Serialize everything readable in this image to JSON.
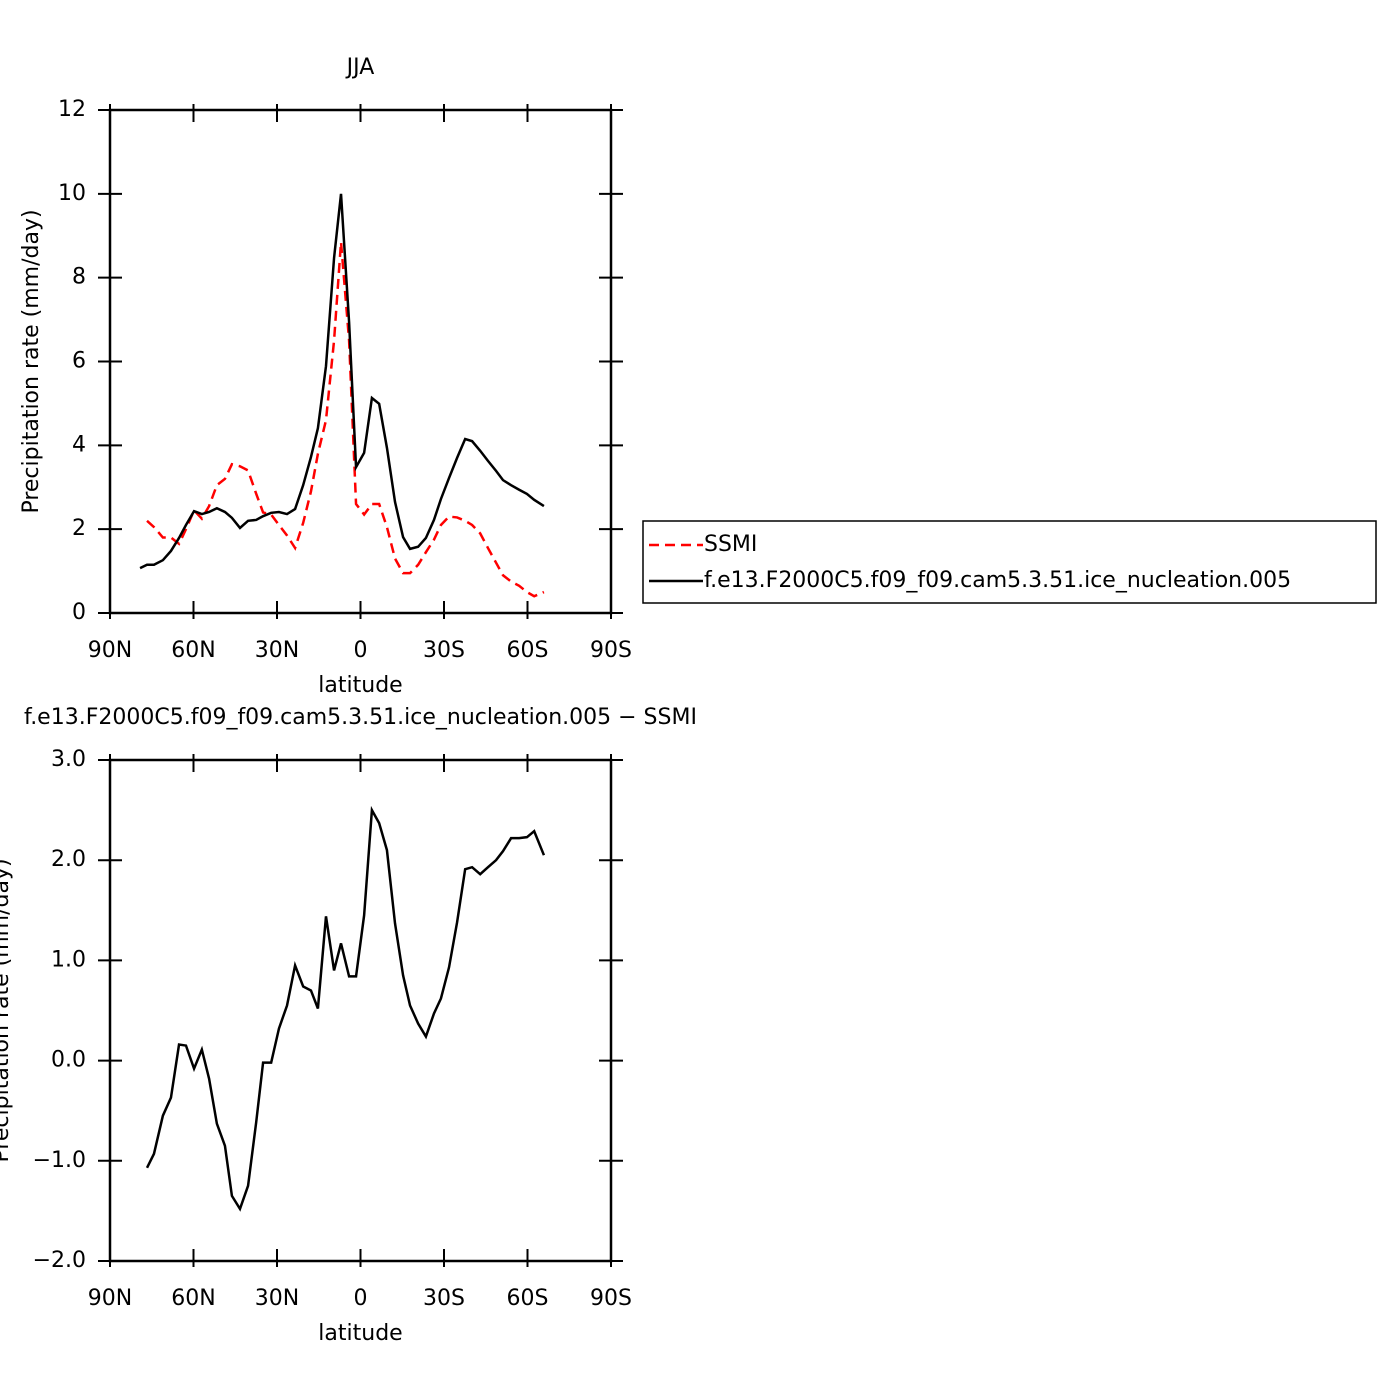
{
  "chart_data": [
    {
      "type": "line",
      "title": "JJA",
      "xlabel": "latitude",
      "ylabel": "Precipitation rate (mm/day)",
      "xlim": [
        90,
        -90
      ],
      "xticks": [
        {
          "value": 90,
          "label": "90N"
        },
        {
          "value": 60,
          "label": "60N"
        },
        {
          "value": 30,
          "label": "30N"
        },
        0,
        {
          "value": -30,
          "label": "30S"
        },
        {
          "value": -60,
          "label": "60S"
        },
        {
          "value": -90,
          "label": "90S"
        }
      ],
      "ylim": [
        0,
        12
      ],
      "yticks": [
        0,
        2,
        4,
        6,
        8,
        10,
        12
      ],
      "legend": "outside-right",
      "x": [
        79.2,
        76.7,
        74.2,
        71,
        68.1,
        65.2,
        62.7,
        59.8,
        57,
        54.4,
        51.6,
        48.7,
        46.2,
        43.3,
        40.4,
        37.5,
        35,
        32.1,
        29.3,
        26.4,
        23.5,
        20.6,
        17.8,
        15.3,
        12.4,
        9.5,
        7.0,
        4.1,
        1.6,
        -1.3,
        -4.1,
        -6.7,
        -9.5,
        -12.4,
        -15.3,
        -17.8,
        -20.7,
        -23.5,
        -26.4,
        -28.9,
        -31.8,
        -34.7,
        -37.6,
        -40.1,
        -43.0,
        -45.8,
        -48.7,
        -51.2,
        -54.1,
        -57.0,
        -59.8,
        -62.4,
        -65.9
      ],
      "series": [
        {
          "name": "SSMI",
          "color": "#ff0000",
          "dash": true,
          "values": [
            null,
            2.2,
            2.05,
            1.8,
            1.8,
            1.65,
            2.0,
            2.45,
            2.25,
            2.55,
            3.05,
            3.2,
            3.55,
            3.5,
            3.4,
            2.85,
            2.4,
            2.35,
            2.1,
            1.85,
            1.55,
            2.15,
            2.9,
            3.8,
            4.6,
            6.5,
            8.85,
            6.5,
            2.6,
            2.35,
            2.6,
            2.6,
            2.05,
            1.3,
            0.95,
            0.95,
            1.15,
            1.45,
            1.75,
            2.1,
            2.3,
            2.28,
            2.2,
            2.1,
            1.9,
            1.55,
            1.2,
            0.9,
            0.75,
            0.65,
            0.5,
            0.4,
            0.5
          ]
        },
        {
          "name": "f.e13.F2000C5.f09_f09.cam5.3.51.ice_nucleation.005",
          "color": "#000000",
          "dash": false,
          "values": [
            1.07,
            1.15,
            1.15,
            1.26,
            1.48,
            1.79,
            2.1,
            2.43,
            2.36,
            2.41,
            2.5,
            2.41,
            2.27,
            2.03,
            2.2,
            2.22,
            2.31,
            2.39,
            2.41,
            2.36,
            2.48,
            3.05,
            3.72,
            4.41,
            5.89,
            8.47,
            10.0,
            6.94,
            3.48,
            3.82,
            5.13,
            4.99,
            3.94,
            2.65,
            1.81,
            1.53,
            1.58,
            1.79,
            2.22,
            2.72,
            3.22,
            3.7,
            4.15,
            4.1,
            3.87,
            3.63,
            3.39,
            3.17,
            3.05,
            2.94,
            2.84,
            2.7,
            2.55
          ]
        }
      ]
    },
    {
      "type": "line",
      "title": "f.e13.F2000C5.f09_f09.cam5.3.51.ice_nucleation.005 − SSMI",
      "xlabel": "latitude",
      "ylabel": "Precipitation rate (mm/day)",
      "xlim": [
        90,
        -90
      ],
      "xticks": [
        {
          "value": 90,
          "label": "90N"
        },
        {
          "value": 60,
          "label": "60N"
        },
        {
          "value": 30,
          "label": "30N"
        },
        0,
        {
          "value": -30,
          "label": "30S"
        },
        {
          "value": -60,
          "label": "60S"
        },
        {
          "value": -90,
          "label": "90S"
        }
      ],
      "ylim": [
        -2,
        3
      ],
      "yticks": [
        {
          "value": -2,
          "label": "−2.0"
        },
        {
          "value": -1,
          "label": "−1.0"
        },
        {
          "value": 0,
          "label": "0.0"
        },
        {
          "value": 1,
          "label": "1.0"
        },
        {
          "value": 2,
          "label": "2.0"
        },
        {
          "value": 3,
          "label": "3.0"
        }
      ],
      "x": [
        76.7,
        74.2,
        71,
        68.1,
        65.2,
        62.7,
        59.8,
        57,
        54.4,
        51.6,
        48.7,
        46.2,
        43.3,
        40.4,
        37.5,
        35,
        32.1,
        29.3,
        26.4,
        23.5,
        20.6,
        17.8,
        15.3,
        12.4,
        9.5,
        7.0,
        4.1,
        1.6,
        -1.3,
        -4.1,
        -6.7,
        -9.5,
        -12.4,
        -15.3,
        -17.8,
        -20.7,
        -23.5,
        -26.4,
        -28.9,
        -31.8,
        -34.7,
        -37.6,
        -40.1,
        -43.0,
        -45.8,
        -48.7,
        -51.2,
        -54.1,
        -57.0,
        -59.8,
        -62.4,
        -65.9
      ],
      "series": [
        {
          "color": "#000000",
          "dash": false,
          "values": [
            -1.07,
            -0.93,
            -0.55,
            -0.37,
            0.16,
            0.15,
            -0.08,
            0.11,
            -0.18,
            -0.63,
            -0.85,
            -1.35,
            -1.48,
            -1.25,
            -0.62,
            -0.02,
            -0.02,
            0.32,
            0.55,
            0.95,
            0.74,
            0.7,
            0.52,
            1.44,
            0.9,
            1.17,
            0.84,
            0.84,
            1.45,
            2.5,
            2.37,
            2.1,
            1.37,
            0.85,
            0.55,
            0.37,
            0.24,
            0.47,
            0.62,
            0.93,
            1.38,
            1.91,
            1.93,
            1.86,
            1.93,
            2.0,
            2.09,
            2.22,
            2.22,
            2.23,
            2.29,
            2.05
          ]
        }
      ]
    }
  ]
}
